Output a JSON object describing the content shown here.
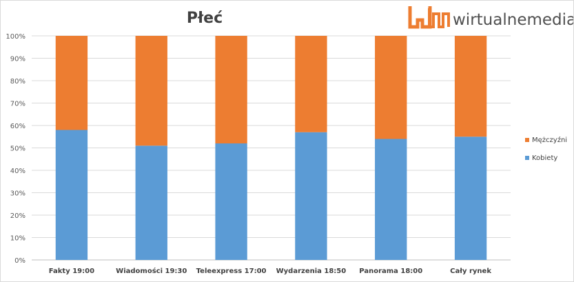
{
  "chart_data": {
    "type": "bar",
    "stacked": true,
    "title": "Płeć",
    "categories": [
      "Fakty 19:00",
      "Wiadomości 19:30",
      "Teleexpress 17:00",
      "Wydarzenia 18:50",
      "Panorama 18:00",
      "Cały rynek"
    ],
    "series": [
      {
        "name": "Kobiety",
        "color": "#5b9bd5",
        "values": [
          58,
          51,
          52,
          57,
          54,
          55
        ]
      },
      {
        "name": "Mężczyźni",
        "color": "#ed7d31",
        "values": [
          42,
          49,
          48,
          43,
          46,
          45
        ]
      }
    ],
    "y_ticks": [
      "0%",
      "10%",
      "20%",
      "30%",
      "40%",
      "50%",
      "60%",
      "70%",
      "80%",
      "90%",
      "100%"
    ],
    "ylim": [
      0,
      100
    ],
    "grid": true,
    "legend_position": "right",
    "legend_order": [
      "Mężczyźni",
      "Kobiety"
    ]
  },
  "logo": {
    "text": "wirtualnemedia.pl",
    "accent_color": "#ed7d31"
  }
}
